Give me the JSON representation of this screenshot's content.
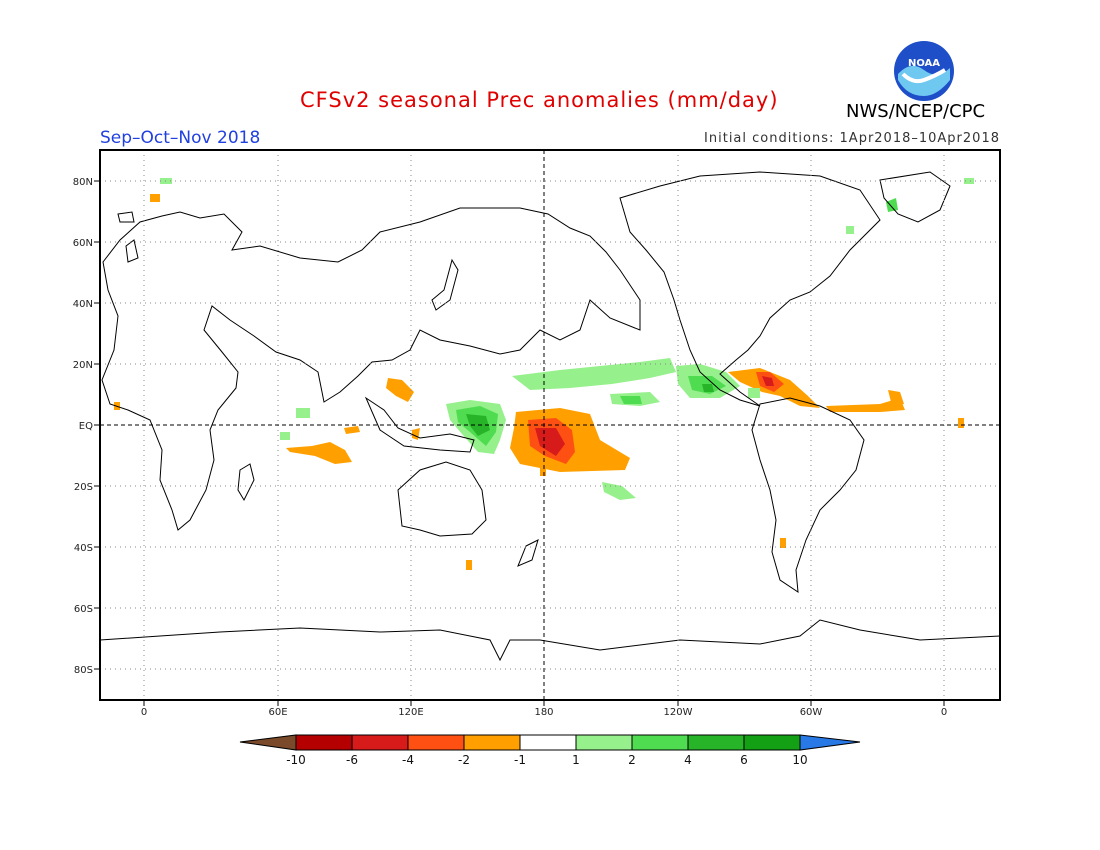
{
  "header": {
    "title": "CFSv2 seasonal Prec anomalies (mm/day)",
    "season": "Sep–Oct–Nov 2018",
    "initial_conditions": "Initial conditions: 1Apr2018–10Apr2018",
    "agency": "NWS/NCEP/CPC",
    "logo_text": "NOAA"
  },
  "map": {
    "projection": "equirectangular",
    "lon_labels": [
      "0",
      "60E",
      "120E",
      "180",
      "120W",
      "60W",
      "0"
    ],
    "lat_labels": [
      "80N",
      "60N",
      "40N",
      "20N",
      "EQ",
      "20S",
      "40S",
      "60S",
      "80S"
    ],
    "grid": "dotted"
  },
  "legend": {
    "tick_labels": [
      "-10",
      "-6",
      "-4",
      "-2",
      "-1",
      "1",
      "2",
      "4",
      "6",
      "10"
    ],
    "colors": {
      "below_min": "#7a4a2a",
      "neg_10_6": "#b40000",
      "neg_6_4": "#d71a1a",
      "neg_4_2": "#ff5014",
      "neg_2_1": "#ffa000",
      "neutral": "#ffffff",
      "pos_1_2": "#96f08c",
      "pos_2_4": "#50dc50",
      "pos_4_6": "#28b428",
      "pos_6_10": "#14a014",
      "above_max": "#2878e6"
    }
  }
}
